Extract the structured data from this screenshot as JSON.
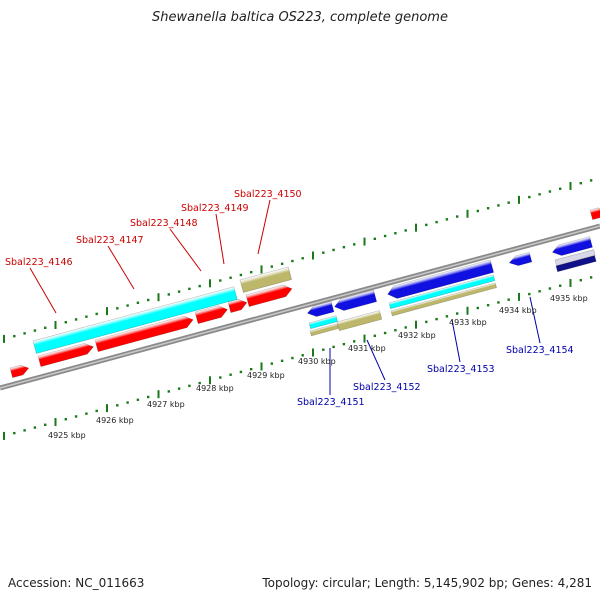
{
  "title": "Shewanella baltica OS223, complete genome",
  "footer": {
    "accession": "Accession: NC_011663",
    "summary": "Topology: circular; Length: 5,145,902 bp; Genes: 4,281"
  },
  "colors": {
    "forward_gene": "#ff0000",
    "reverse_gene": "#1010e0",
    "cyan_feature": "#00ffff",
    "khaki_feature": "#bdb76b",
    "axis": "#888888",
    "tick": "#1a7a1a",
    "forward_label": "#cc0000",
    "reverse_label": "#0000aa"
  },
  "scale_labels": [
    "4925 kbp",
    "4926 kbp",
    "4927 kbp",
    "4928 kbp",
    "4929 kbp",
    "4930 kbp",
    "4931 kbp",
    "4932 kbp",
    "4933 kbp",
    "4934 kbp",
    "4935 kbp"
  ],
  "gene_labels": {
    "forward": [
      "Sbal223_4146",
      "Sbal223_4147",
      "Sbal223_4148",
      "Sbal223_4149",
      "Sbal223_4150"
    ],
    "reverse": [
      "Sbal223_4151",
      "Sbal223_4152",
      "Sbal223_4153",
      "Sbal223_4154"
    ]
  }
}
